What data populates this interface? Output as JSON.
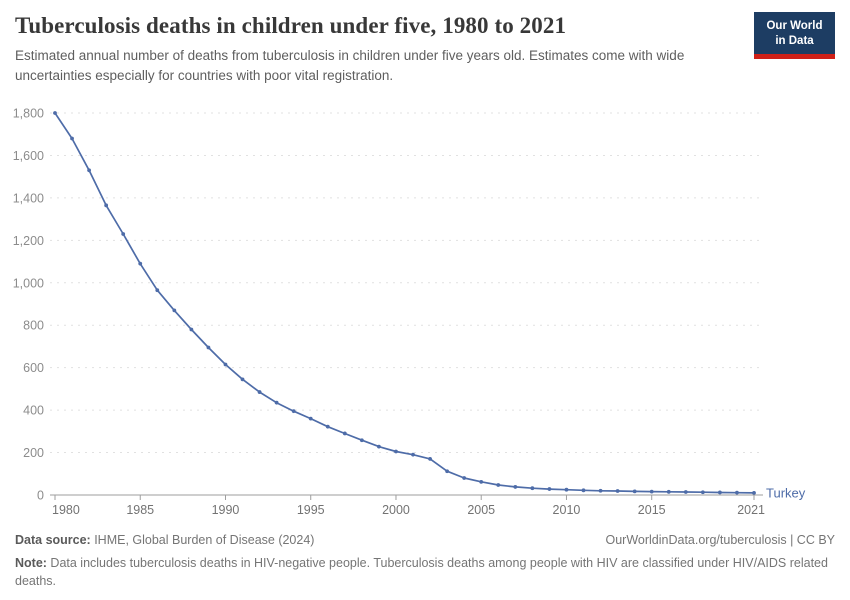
{
  "header": {
    "title": "Tuberculosis deaths in children under five, 1980 to 2021",
    "subtitle": "Estimated annual number of deaths from tuberculosis in children under five years old. Estimates come with wide uncertainties especially for countries with poor vital registration.",
    "logo": {
      "line1": "Our World",
      "line2": "in Data",
      "bg_color": "#1d3d63",
      "bar_color": "#cf2018"
    }
  },
  "chart_data": {
    "type": "line",
    "title": "Tuberculosis deaths in children under five, 1980 to 2021",
    "xlabel": "",
    "ylabel": "",
    "xlim": [
      1980,
      2021
    ],
    "ylim": [
      0,
      1800
    ],
    "xticks": [
      1980,
      1985,
      1990,
      1995,
      2000,
      2005,
      2010,
      2015,
      2021
    ],
    "yticks": [
      0,
      200,
      400,
      600,
      800,
      1000,
      1200,
      1400,
      1600,
      1800
    ],
    "grid": true,
    "legend_position": "end-of-line",
    "x": [
      1980,
      1981,
      1982,
      1983,
      1984,
      1985,
      1986,
      1987,
      1988,
      1989,
      1990,
      1991,
      1992,
      1993,
      1994,
      1995,
      1996,
      1997,
      1998,
      1999,
      2000,
      2001,
      2002,
      2003,
      2004,
      2005,
      2006,
      2007,
      2008,
      2009,
      2010,
      2011,
      2012,
      2013,
      2014,
      2015,
      2016,
      2017,
      2018,
      2019,
      2020,
      2021
    ],
    "series": [
      {
        "name": "Turkey",
        "color": "#4e6ca8",
        "values": [
          1800,
          1680,
          1530,
          1365,
          1230,
          1090,
          965,
          870,
          780,
          695,
          615,
          545,
          485,
          435,
          395,
          360,
          322,
          290,
          258,
          228,
          205,
          190,
          170,
          112,
          80,
          62,
          47,
          38,
          32,
          28,
          25,
          22,
          20,
          19,
          17,
          16,
          15,
          14,
          13,
          12,
          11,
          10
        ]
      }
    ],
    "end_label": "Turkey",
    "colors": {
      "gridline": "#e1e1e1",
      "axis": "#9e9e9e",
      "y_tick_label": "#8c8c8c",
      "x_tick_label": "#737373"
    }
  },
  "footer": {
    "datasource_label": "Data source:",
    "datasource_text": " IHME, Global Burden of Disease (2024)",
    "link_text": "OurWorldinData.org/tuberculosis | CC BY",
    "note_label": "Note:",
    "note_text": " Data includes tuberculosis deaths in HIV-negative people. Tuberculosis deaths among people with HIV are classified under HIV/AIDS related deaths."
  }
}
